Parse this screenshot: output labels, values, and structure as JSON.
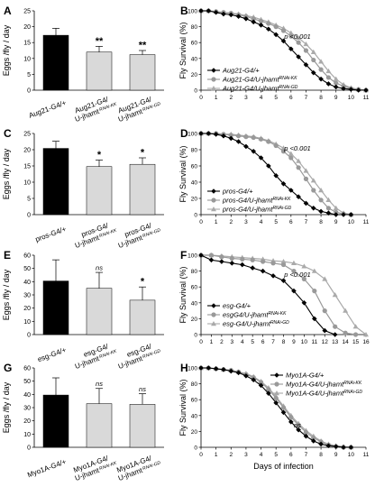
{
  "chart_data": [
    {
      "panel": "A",
      "type": "bar",
      "ylabel": "Eggs /fly / day",
      "ylim": [
        0,
        25
      ],
      "yticks": [
        0,
        5,
        10,
        15,
        20,
        25
      ],
      "categories": [
        {
          "line1": "Aug21-G4/+",
          "line2": "",
          "sup": ""
        },
        {
          "line1": "Aug21-G4/",
          "line2": "U-jhamt",
          "sup": "RNAi-KK"
        },
        {
          "line1": "Aug21-G4/",
          "line2": "U-jhamt",
          "sup": "RNAi-GD"
        }
      ],
      "values": [
        17.3,
        12.0,
        11.2
      ],
      "errors": [
        2.2,
        1.8,
        1.3
      ],
      "significance": [
        "",
        "**",
        "**"
      ],
      "colors": [
        "#000000",
        "#d9d9d9",
        "#d9d9d9"
      ]
    },
    {
      "panel": "B",
      "type": "line",
      "ylabel": "Fly Survival (%)",
      "ylim": [
        0,
        100
      ],
      "yticks": [
        0,
        20,
        40,
        60,
        80,
        100
      ],
      "xlim": [
        0,
        11
      ],
      "xticks": [
        0,
        1,
        2,
        3,
        4,
        5,
        6,
        7,
        8,
        9,
        10,
        11
      ],
      "annotation": "p <0.001",
      "series": [
        {
          "name": "Aug21-G4/+",
          "marker": "diamond",
          "color": "#000000",
          "x": [
            0,
            0.5,
            1,
            1.5,
            2,
            2.5,
            3,
            3.5,
            4,
            4.5,
            5,
            5.5,
            6,
            6.5,
            7,
            7.5,
            8,
            8.5,
            9,
            9.5,
            10,
            10.5,
            11
          ],
          "y": [
            100,
            100,
            98,
            96,
            95,
            93,
            90,
            86,
            82,
            77,
            70,
            62,
            52,
            42,
            32,
            22,
            14,
            8,
            4,
            2,
            1,
            0,
            0
          ]
        },
        {
          "name": "Aug21-G4/U-jhamt",
          "sup": "RNAi-KK",
          "marker": "circle",
          "color": "#999999",
          "x": [
            0,
            0.5,
            1,
            1.5,
            2,
            2.5,
            3,
            3.5,
            4,
            4.5,
            5,
            5.5,
            6,
            6.5,
            7,
            7.5,
            8,
            8.5,
            9,
            9.5,
            10,
            10.5,
            11
          ],
          "y": [
            100,
            100,
            99,
            98,
            97,
            95,
            93,
            90,
            87,
            84,
            80,
            75,
            68,
            60,
            50,
            38,
            26,
            16,
            9,
            5,
            2,
            1,
            0
          ]
        },
        {
          "name": "Aug21-G4/U-jhamt",
          "sup": "RNAi-GD",
          "marker": "triangle",
          "color": "#aaaaaa",
          "x": [
            0,
            0.5,
            1,
            1.5,
            2,
            2.5,
            3,
            3.5,
            4,
            4.5,
            5,
            5.5,
            6,
            6.5,
            7,
            7.5,
            8,
            8.5,
            9,
            9.5,
            10,
            10.5,
            11
          ],
          "y": [
            100,
            100,
            99,
            98,
            97,
            96,
            94,
            92,
            89,
            86,
            82,
            78,
            72,
            66,
            58,
            48,
            36,
            24,
            14,
            7,
            3,
            1,
            0
          ]
        }
      ]
    },
    {
      "panel": "C",
      "type": "bar",
      "ylabel": "Eggs /fly / day",
      "ylim": [
        0,
        25
      ],
      "yticks": [
        0,
        5,
        10,
        15,
        20,
        25
      ],
      "categories": [
        {
          "line1": "pros-G4/+",
          "line2": "",
          "sup": ""
        },
        {
          "line1": "pros-G4/",
          "line2": "U-jhamt",
          "sup": "RNAi-KK"
        },
        {
          "line1": "pros-G4/",
          "line2": "U-jhamt",
          "sup": "RNAi-GD"
        }
      ],
      "values": [
        20.4,
        14.8,
        15.5
      ],
      "errors": [
        2.2,
        2.0,
        2.0
      ],
      "significance": [
        "",
        "*",
        "*"
      ],
      "colors": [
        "#000000",
        "#d9d9d9",
        "#d9d9d9"
      ]
    },
    {
      "panel": "D",
      "type": "line",
      "ylabel": "Fly Survival (%)",
      "ylim": [
        0,
        100
      ],
      "yticks": [
        0,
        20,
        40,
        60,
        80,
        100
      ],
      "xlim": [
        0,
        11
      ],
      "xticks": [
        0,
        1,
        2,
        3,
        4,
        5,
        6,
        7,
        8,
        9,
        10,
        11
      ],
      "annotation": "p <0.001",
      "series": [
        {
          "name": "pros-G4/+",
          "marker": "diamond",
          "color": "#000000",
          "x": [
            0,
            0.5,
            1,
            1.5,
            2,
            2.5,
            3,
            3.5,
            4,
            4.5,
            5,
            5.5,
            6,
            6.5,
            7,
            7.5,
            8,
            8.5,
            9,
            9.5,
            10
          ],
          "y": [
            100,
            100,
            99,
            97,
            94,
            90,
            84,
            78,
            70,
            60,
            48,
            38,
            30,
            22,
            14,
            8,
            4,
            2,
            0,
            0,
            0
          ]
        },
        {
          "name": "pros-G4/U-jhamt",
          "sup": "RNAi-KK",
          "marker": "circle",
          "color": "#999999",
          "x": [
            0,
            0.5,
            1,
            1.5,
            2,
            2.5,
            3,
            3.5,
            4,
            4.5,
            5,
            5.5,
            6,
            6.5,
            7,
            7.5,
            8,
            8.5,
            9,
            9.5,
            10
          ],
          "y": [
            100,
            100,
            100,
            99,
            98,
            97,
            96,
            95,
            93,
            90,
            85,
            78,
            70,
            58,
            44,
            30,
            18,
            8,
            3,
            1,
            0
          ]
        },
        {
          "name": "pros-G4/U-jhamt",
          "sup": "RNAi-GD",
          "marker": "triangle",
          "color": "#aaaaaa",
          "x": [
            0,
            0.5,
            1,
            1.5,
            2,
            2.5,
            3,
            3.5,
            4,
            4.5,
            5,
            5.5,
            6,
            6.5,
            7,
            7.5,
            8,
            8.5,
            9,
            9.5,
            10
          ],
          "y": [
            100,
            100,
            100,
            99,
            99,
            98,
            97,
            96,
            94,
            91,
            87,
            82,
            75,
            66,
            54,
            42,
            30,
            18,
            8,
            2,
            0
          ]
        }
      ]
    },
    {
      "panel": "E",
      "type": "bar",
      "ylabel": "Eggs /fly / day",
      "ylim": [
        0,
        60
      ],
      "yticks": [
        0,
        10,
        20,
        30,
        40,
        50,
        60
      ],
      "categories": [
        {
          "line1": "esg-G4/+",
          "line2": "",
          "sup": ""
        },
        {
          "line1": "esg-G4/",
          "line2": "U-jhamt",
          "sup": "RNAi-KK"
        },
        {
          "line1": "esg-G4/",
          "line2": "U-jhamt",
          "sup": "RNAi-GD"
        }
      ],
      "values": [
        40.5,
        35.0,
        26.0
      ],
      "errors": [
        16.0,
        12.0,
        10.0
      ],
      "significance": [
        "",
        "ns",
        "*"
      ],
      "colors": [
        "#000000",
        "#d9d9d9",
        "#d9d9d9"
      ]
    },
    {
      "panel": "F",
      "type": "line",
      "ylabel": "Fly Survival (%)",
      "ylim": [
        0,
        100
      ],
      "yticks": [
        0,
        20,
        40,
        60,
        80,
        100
      ],
      "xlim": [
        0,
        16
      ],
      "xticks": [
        0,
        1,
        2,
        3,
        4,
        5,
        6,
        7,
        8,
        9,
        10,
        11,
        12,
        13,
        14,
        15,
        16
      ],
      "annotation": "p <0.001",
      "series": [
        {
          "name": "esg-G4/+",
          "marker": "diamond",
          "color": "#000000",
          "x": [
            0,
            1,
            2,
            3,
            4,
            5,
            6,
            7,
            8,
            9,
            10,
            11,
            12,
            13
          ],
          "y": [
            100,
            94,
            92,
            90,
            88,
            84,
            80,
            74,
            68,
            55,
            40,
            20,
            5,
            0
          ]
        },
        {
          "name": "esgG4/U-jhamt",
          "sup": "RNAi-KK",
          "marker": "circle",
          "color": "#999999",
          "x": [
            0,
            1,
            2,
            3,
            4,
            5,
            6,
            7,
            8,
            9,
            10,
            11,
            12,
            13,
            14,
            15
          ],
          "y": [
            100,
            100,
            98,
            96,
            95,
            94,
            92,
            90,
            88,
            80,
            70,
            55,
            30,
            10,
            2,
            0
          ]
        },
        {
          "name": "esg-G4/U-jhamt",
          "sup": "RNAi-GD",
          "marker": "triangle",
          "color": "#aaaaaa",
          "x": [
            0,
            1,
            2,
            3,
            4,
            5,
            6,
            7,
            8,
            9,
            10,
            11,
            12,
            13,
            14,
            15,
            16
          ],
          "y": [
            100,
            100,
            99,
            98,
            97,
            96,
            95,
            93,
            92,
            90,
            86,
            80,
            70,
            50,
            30,
            10,
            0
          ]
        }
      ]
    },
    {
      "panel": "G",
      "type": "bar",
      "ylabel": "Eggs /fly / day",
      "ylim": [
        0,
        60
      ],
      "yticks": [
        0,
        10,
        20,
        30,
        40,
        50,
        60
      ],
      "categories": [
        {
          "line1": "Myo1A-G4/+",
          "line2": "",
          "sup": ""
        },
        {
          "line1": "Myo1A-G4/",
          "line2": "U-jhamt",
          "sup": "RNAi-KK"
        },
        {
          "line1": "Myo1A-G4/",
          "line2": "U-jhamt",
          "sup": "RNAi-GD"
        }
      ],
      "values": [
        39.5,
        33.0,
        32.5
      ],
      "errors": [
        13.0,
        11.5,
        8.0
      ],
      "significance": [
        "",
        "ns",
        "ns"
      ],
      "colors": [
        "#000000",
        "#d9d9d9",
        "#d9d9d9"
      ]
    },
    {
      "panel": "H",
      "type": "line",
      "ylabel": "Fly Survival (%)",
      "xlabel": "Days of infection",
      "ylim": [
        0,
        100
      ],
      "yticks": [
        0,
        20,
        40,
        60,
        80,
        100
      ],
      "xlim": [
        0,
        11
      ],
      "xticks": [
        0,
        1,
        2,
        3,
        4,
        5,
        6,
        7,
        8,
        9,
        10,
        11
      ],
      "annotation": "ns",
      "series": [
        {
          "name": "Myo1A-G4/+",
          "marker": "diamond",
          "color": "#000000",
          "x": [
            0,
            0.5,
            1,
            1.5,
            2,
            2.5,
            3,
            3.5,
            4,
            4.5,
            5,
            5.5,
            6,
            6.5,
            7,
            7.5,
            8,
            8.5,
            9,
            9.5,
            10
          ],
          "y": [
            100,
            100,
            99,
            98,
            96,
            94,
            90,
            85,
            78,
            68,
            56,
            44,
            32,
            22,
            14,
            8,
            4,
            2,
            1,
            0,
            0
          ]
        },
        {
          "name": "Myo1A-G4/U-jhamt",
          "sup": "RNAi-KK",
          "marker": "circle",
          "color": "#999999",
          "x": [
            0,
            0.5,
            1,
            1.5,
            2,
            2.5,
            3,
            3.5,
            4,
            4.5,
            5,
            5.5,
            6,
            6.5,
            7,
            7.5,
            8,
            8.5,
            9,
            9.5,
            10
          ],
          "y": [
            100,
            100,
            99,
            98,
            97,
            95,
            92,
            88,
            82,
            73,
            62,
            50,
            38,
            28,
            19,
            12,
            7,
            3,
            1,
            0,
            0
          ]
        },
        {
          "name": "Myo1A-G4/U-jhamt",
          "sup": "RNAi-GD",
          "marker": "triangle",
          "color": "#aaaaaa",
          "x": [
            0,
            0.5,
            1,
            1.5,
            2,
            2.5,
            3,
            3.5,
            4,
            4.5,
            5,
            5.5,
            6,
            6.5,
            7,
            7.5,
            8,
            8.5,
            9,
            9.5,
            10
          ],
          "y": [
            100,
            100,
            99,
            98,
            97,
            95,
            93,
            89,
            83,
            75,
            64,
            52,
            40,
            30,
            21,
            14,
            8,
            4,
            2,
            1,
            0
          ]
        }
      ]
    }
  ]
}
